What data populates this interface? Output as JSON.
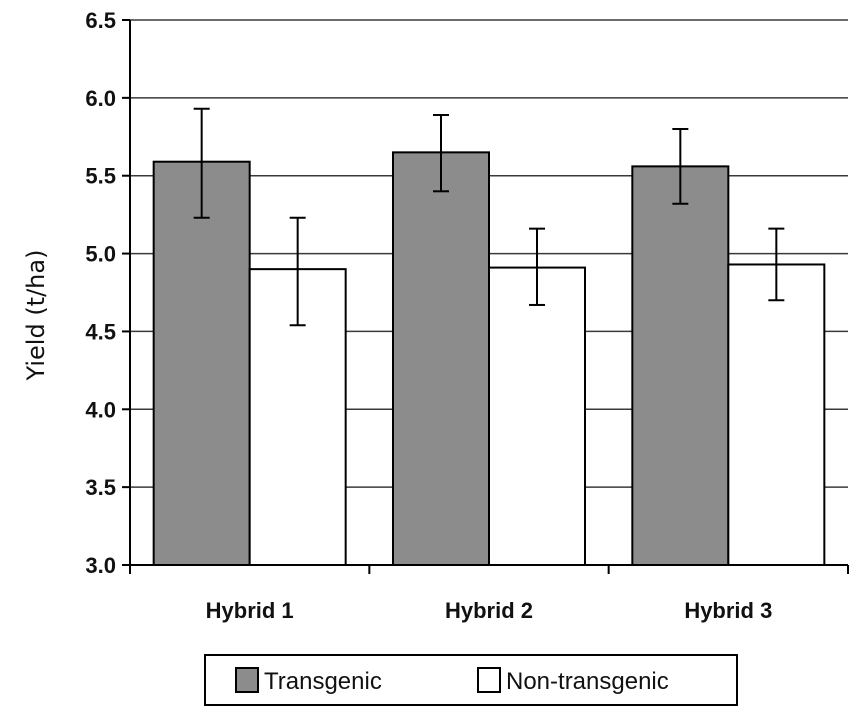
{
  "chart_data": {
    "type": "bar",
    "title": "",
    "xlabel": "",
    "ylabel": "Yield (t/ha)",
    "ylim": [
      3.0,
      6.5
    ],
    "yticks": [
      "3.0",
      "3.5",
      "4.0",
      "4.5",
      "5.0",
      "5.5",
      "6.0",
      "6.5"
    ],
    "grid": true,
    "legend_position": "bottom-center",
    "categories": [
      "Hybrid 1",
      "Hybrid 2",
      "Hybrid 3"
    ],
    "series": [
      {
        "name": "Transgenic",
        "color": "#8c8c8c",
        "values": [
          5.59,
          5.65,
          5.56
        ],
        "error_low": [
          5.23,
          5.4,
          5.32
        ],
        "error_high": [
          5.93,
          5.89,
          5.8
        ]
      },
      {
        "name": "Non-transgenic",
        "color": "#ffffff",
        "values": [
          4.9,
          4.91,
          4.93
        ],
        "error_low": [
          4.54,
          4.67,
          4.7
        ],
        "error_high": [
          5.23,
          5.16,
          5.16
        ]
      }
    ]
  }
}
